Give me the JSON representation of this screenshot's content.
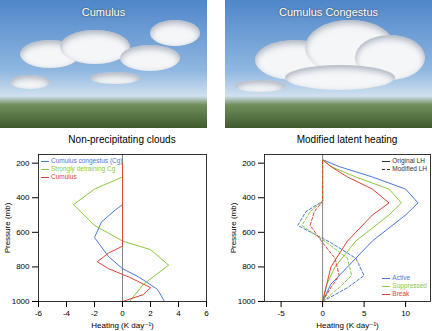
{
  "images": [
    {
      "label": "Cumulus"
    },
    {
      "label": "Cumulus Congestus"
    }
  ],
  "chart_data": [
    {
      "type": "line",
      "title": "Non-precipitating clouds",
      "x_label": "Heating (K day⁻¹)",
      "y_label": "Pressure (mb)",
      "xlim": [
        -6,
        6
      ],
      "xticks": [
        -6,
        -4,
        -2,
        0,
        2,
        4,
        6
      ],
      "ylim": [
        1000,
        150
      ],
      "yticks": [
        200,
        400,
        600,
        800,
        1000
      ],
      "x_reference": 0,
      "legend": "top-left",
      "series": [
        {
          "name": "Cumulus congestus (Cg)",
          "color": "#4a78d8",
          "line_style": "solid",
          "x": [
            3,
            2.5,
            1.2,
            0,
            -1,
            -2,
            -1.5,
            -0.5,
            0,
            0
          ],
          "y": [
            1000,
            930,
            860,
            810,
            740,
            630,
            540,
            470,
            440,
            200
          ]
        },
        {
          "name": "Strongly detraining Cg",
          "color": "#8cc63f",
          "line_style": "solid",
          "x": [
            0.5,
            1.5,
            3.3,
            2,
            0,
            -2,
            -3.5,
            -2,
            0,
            0
          ],
          "y": [
            1000,
            900,
            790,
            700,
            650,
            560,
            440,
            350,
            280,
            200
          ]
        },
        {
          "name": "Cumulus",
          "color": "#d9453a",
          "line_style": "solid",
          "x": [
            0,
            1.5,
            2,
            0.5,
            -1,
            -1.8,
            -1,
            0,
            0
          ],
          "y": [
            1000,
            960,
            920,
            860,
            810,
            770,
            720,
            680,
            200
          ]
        }
      ]
    },
    {
      "type": "line",
      "title": "Modified latent heating",
      "x_label": "Heating (K day⁻¹)",
      "y_label": "Pressure (mb)",
      "xlim": [
        -7,
        13
      ],
      "xticks": [
        -5,
        0,
        5,
        10
      ],
      "ylim": [
        1000,
        150
      ],
      "yticks": [
        200,
        400,
        600,
        800,
        1000
      ],
      "x_reference": 0,
      "legend": "bottom-right",
      "line_style_legend": [
        {
          "name": "Original LH",
          "line_style": "solid"
        },
        {
          "name": "Modified LH",
          "line_style": "dashed"
        }
      ],
      "series": [
        {
          "name": "Active",
          "color": "#4a78d8",
          "line_style": "solid",
          "x": [
            0,
            1,
            3,
            6,
            10,
            11.5,
            10,
            6,
            2,
            0
          ],
          "y": [
            1000,
            900,
            800,
            650,
            500,
            430,
            350,
            280,
            220,
            180
          ]
        },
        {
          "name": "Suppressed",
          "color": "#8cc63f",
          "line_style": "solid",
          "x": [
            0,
            0.5,
            1.5,
            4,
            8,
            9.5,
            8,
            4,
            1,
            0
          ],
          "y": [
            1000,
            900,
            800,
            650,
            500,
            430,
            350,
            280,
            220,
            180
          ]
        },
        {
          "name": "Break",
          "color": "#d9453a",
          "line_style": "solid",
          "x": [
            0,
            0.5,
            1,
            3,
            6,
            8,
            6,
            3,
            1,
            0
          ],
          "y": [
            1000,
            900,
            800,
            650,
            500,
            430,
            350,
            280,
            220,
            180
          ]
        },
        {
          "name": "Active",
          "color": "#4a78d8",
          "line_style": "dashed",
          "x": [
            0,
            3,
            5,
            4,
            1,
            -3,
            -2,
            0,
            0
          ],
          "y": [
            1000,
            920,
            850,
            750,
            660,
            560,
            480,
            420,
            180
          ]
        },
        {
          "name": "Suppressed",
          "color": "#8cc63f",
          "line_style": "dashed",
          "x": [
            0,
            2,
            3.5,
            3,
            0.5,
            -2.5,
            -1.5,
            0,
            0
          ],
          "y": [
            1000,
            920,
            850,
            750,
            660,
            560,
            480,
            420,
            180
          ]
        },
        {
          "name": "Break",
          "color": "#d9453a",
          "line_style": "dashed",
          "x": [
            0,
            1,
            2,
            1.5,
            0,
            -1.5,
            -1,
            0,
            0
          ],
          "y": [
            1000,
            920,
            850,
            750,
            660,
            560,
            480,
            420,
            180
          ]
        }
      ]
    }
  ]
}
